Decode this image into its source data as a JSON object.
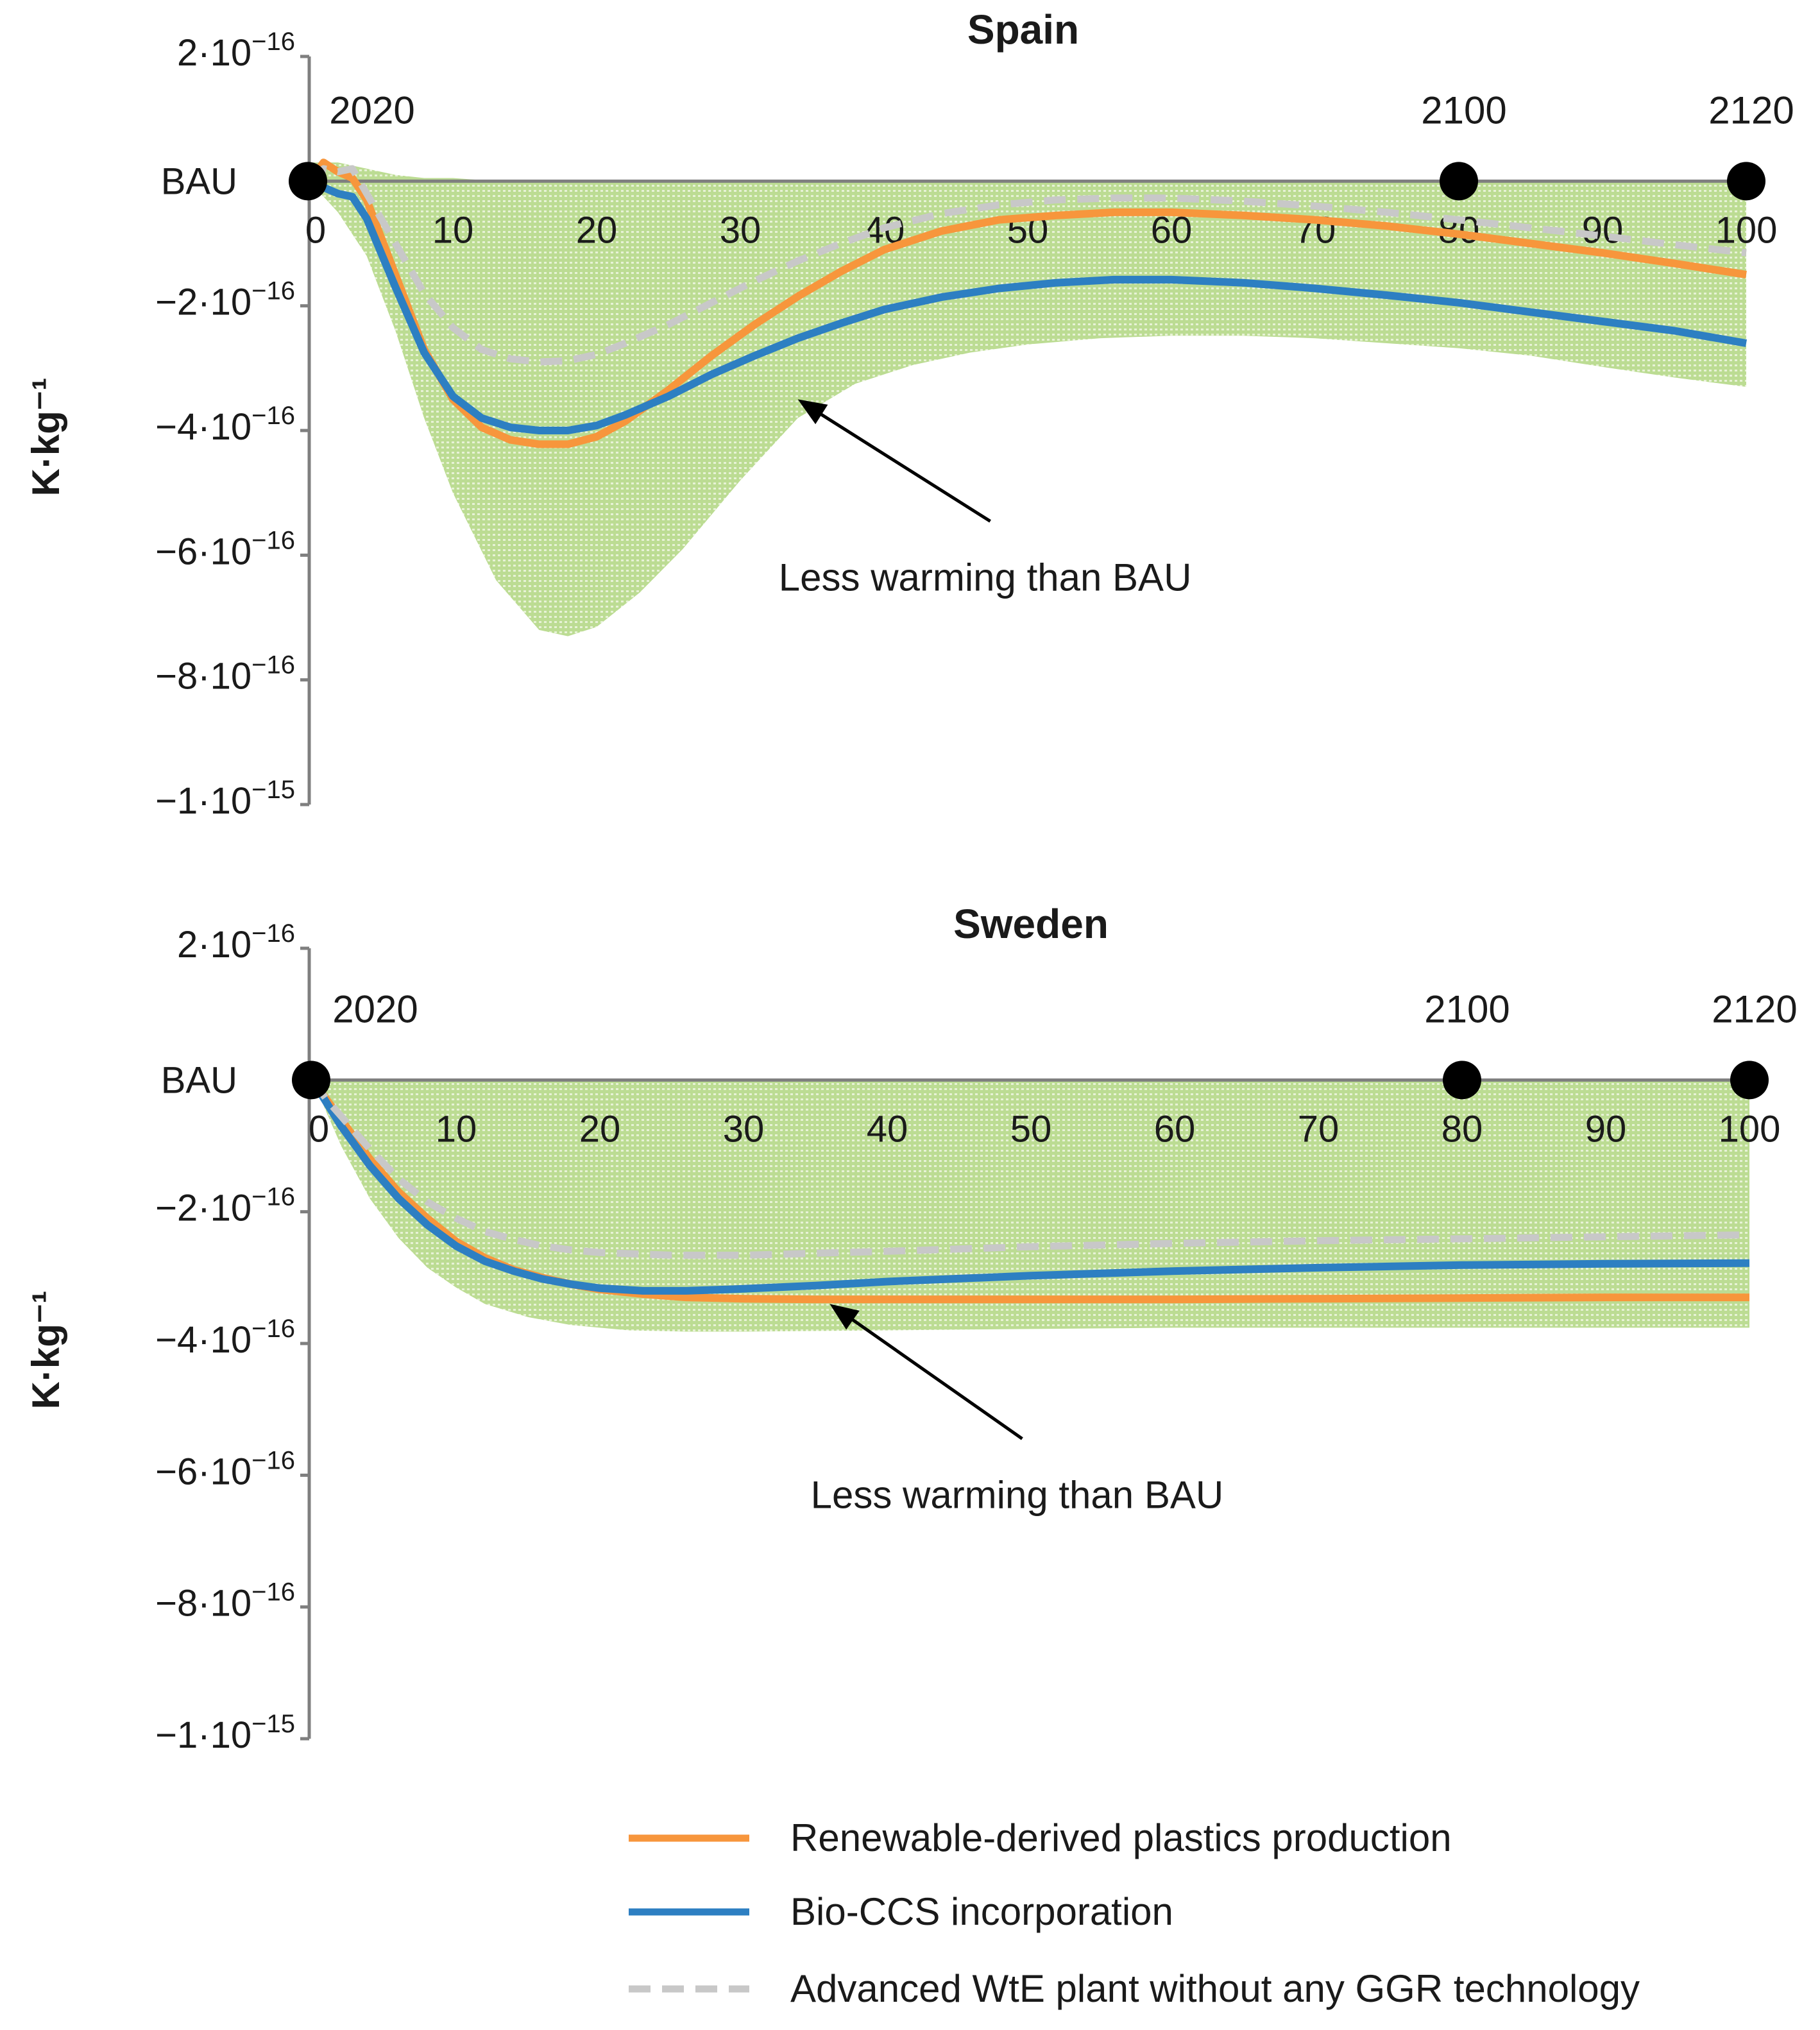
{
  "chart_data": [
    {
      "type": "line",
      "title": "Spain",
      "ylabel": "K·kg⁻¹",
      "xlabel": "",
      "xlim": [
        0,
        100
      ],
      "ylim": [
        -1e-15,
        2e-16
      ],
      "x_ticks": [
        "0",
        "10",
        "20",
        "30",
        "40",
        "50",
        "60",
        "70",
        "80",
        "90",
        "100"
      ],
      "y_ticks": [
        {
          "value": 2e-16,
          "mant": "2",
          "exp": "−16"
        },
        {
          "value": -2e-16,
          "mant": "−2",
          "exp": "−16"
        },
        {
          "value": -4e-16,
          "mant": "−4",
          "exp": "−16"
        },
        {
          "value": -6e-16,
          "mant": "−6",
          "exp": "−16"
        },
        {
          "value": -8e-16,
          "mant": "−8",
          "exp": "−16"
        },
        {
          "value": -1e-15,
          "mant": "−1",
          "exp": "−15"
        }
      ],
      "baseline_label": "BAU",
      "year_markers": [
        {
          "x": 0,
          "label": "2020"
        },
        {
          "x": 80,
          "label": "2100"
        },
        {
          "x": 100,
          "label": "2120"
        }
      ],
      "annotation": {
        "text": "Less warming than BAU",
        "x": 34,
        "y": -3.5e-16
      },
      "band": {
        "x": [
          0,
          2,
          4,
          6,
          8,
          10,
          13,
          16,
          18,
          20,
          23,
          26,
          30,
          34,
          38,
          42,
          46,
          50,
          55,
          60,
          65,
          70,
          75,
          80,
          85,
          90,
          95,
          100
        ],
        "upper": [
          3e-17,
          3e-17,
          2e-17,
          1e-17,
          5e-18,
          5e-18,
          0,
          0,
          0,
          0,
          0,
          0,
          0,
          0,
          0,
          0,
          0,
          0,
          0,
          0,
          0,
          0,
          0,
          0,
          0,
          0,
          0,
          0
        ],
        "lower": [
          0,
          -5e-17,
          -1.2e-16,
          -2.4e-16,
          -3.8e-16,
          -5e-16,
          -6.4e-16,
          -7.2e-16,
          -7.3e-16,
          -7.15e-16,
          -6.6e-16,
          -5.9e-16,
          -4.8e-16,
          -3.8e-16,
          -3.25e-16,
          -2.95e-16,
          -2.75e-16,
          -2.62e-16,
          -2.52e-16,
          -2.48e-16,
          -2.48e-16,
          -2.52e-16,
          -2.6e-16,
          -2.68e-16,
          -2.8e-16,
          -2.98e-16,
          -3.15e-16,
          -3.3e-16
        ]
      },
      "series": [
        {
          "name": "Renewable-derived plastics production",
          "color": "#f7963c",
          "dashed": false,
          "x": [
            0,
            1,
            2,
            3,
            4,
            6,
            8,
            10,
            12,
            14,
            16,
            18,
            20,
            22,
            25,
            28,
            31,
            34,
            37,
            40,
            44,
            48,
            52,
            56,
            60,
            65,
            70,
            75,
            80,
            85,
            90,
            95,
            100
          ],
          "values": [
            0,
            3e-17,
            1.5e-17,
            5e-18,
            -3e-17,
            -1.5e-16,
            -2.7e-16,
            -3.5e-16,
            -3.95e-16,
            -4.15e-16,
            -4.22e-16,
            -4.22e-16,
            -4.1e-16,
            -3.85e-16,
            -3.35e-16,
            -2.8e-16,
            -2.3e-16,
            -1.85e-16,
            -1.45e-16,
            -1.1e-16,
            -8e-17,
            -6.2e-17,
            -5.5e-17,
            -5e-17,
            -5e-17,
            -5.5e-17,
            -6.2e-17,
            -7.2e-17,
            -8.5e-17,
            -1e-16,
            -1.15e-16,
            -1.32e-16,
            -1.5e-16
          ]
        },
        {
          "name": "Bio-CCS incorporation",
          "color": "#2d7fc2",
          "dashed": false,
          "x": [
            0,
            1,
            2,
            3,
            4,
            6,
            8,
            10,
            12,
            14,
            16,
            18,
            20,
            22,
            25,
            28,
            31,
            34,
            37,
            40,
            44,
            48,
            52,
            56,
            60,
            65,
            70,
            75,
            80,
            85,
            90,
            95,
            100
          ],
          "values": [
            0,
            -1e-17,
            -2e-17,
            -2.5e-17,
            -6e-17,
            -1.7e-16,
            -2.75e-16,
            -3.45e-16,
            -3.8e-16,
            -3.95e-16,
            -4e-16,
            -4e-16,
            -3.92e-16,
            -3.75e-16,
            -3.45e-16,
            -3.1e-16,
            -2.8e-16,
            -2.52e-16,
            -2.28e-16,
            -2.06e-16,
            -1.86e-16,
            -1.72e-16,
            -1.63e-16,
            -1.58e-16,
            -1.58e-16,
            -1.63e-16,
            -1.72e-16,
            -1.83e-16,
            -1.95e-16,
            -2.1e-16,
            -2.25e-16,
            -2.4e-16,
            -2.6e-16
          ]
        },
        {
          "name": "Advanced WtE plant without any GGR technology",
          "color": "#c8c8c8",
          "dashed": true,
          "x": [
            0,
            1,
            2,
            3,
            4,
            6,
            8,
            10,
            12,
            14,
            16,
            18,
            20,
            22,
            25,
            28,
            31,
            34,
            37,
            40,
            44,
            48,
            52,
            56,
            60,
            65,
            70,
            75,
            80,
            85,
            90,
            95,
            100
          ],
          "values": [
            0,
            2e-17,
            1.5e-17,
            2e-17,
            -2e-17,
            -1e-16,
            -1.8e-16,
            -2.35e-16,
            -2.7e-16,
            -2.85e-16,
            -2.9e-16,
            -2.88e-16,
            -2.78e-16,
            -2.6e-16,
            -2.3e-16,
            -1.95e-16,
            -1.6e-16,
            -1.28e-16,
            -1e-16,
            -7.5e-17,
            -5.2e-17,
            -3.8e-17,
            -3e-17,
            -2.7e-17,
            -2.7e-17,
            -3.2e-17,
            -4e-17,
            -5e-17,
            -6.2e-17,
            -7.5e-17,
            -8.8e-17,
            -1.02e-16,
            -1.15e-16
          ]
        }
      ]
    },
    {
      "type": "line",
      "title": "Sweden",
      "ylabel": "K·kg⁻¹",
      "xlabel": "",
      "xlim": [
        0,
        100
      ],
      "ylim": [
        -1e-15,
        2e-16
      ],
      "x_ticks": [
        "0",
        "10",
        "20",
        "30",
        "40",
        "50",
        "60",
        "70",
        "80",
        "90",
        "100"
      ],
      "y_ticks": [
        {
          "value": 2e-16,
          "mant": "2",
          "exp": "−16"
        },
        {
          "value": -2e-16,
          "mant": "−2",
          "exp": "−16"
        },
        {
          "value": -4e-16,
          "mant": "−4",
          "exp": "−16"
        },
        {
          "value": -6e-16,
          "mant": "−6",
          "exp": "−16"
        },
        {
          "value": -8e-16,
          "mant": "−8",
          "exp": "−16"
        },
        {
          "value": -1e-15,
          "mant": "−1",
          "exp": "−15"
        }
      ],
      "baseline_label": "BAU",
      "year_markers": [
        {
          "x": 0,
          "label": "2020"
        },
        {
          "x": 80,
          "label": "2100"
        },
        {
          "x": 100,
          "label": "2120"
        }
      ],
      "annotation": {
        "text": "Less warming than BAU",
        "x": 36,
        "y": -3.4e-16
      },
      "band": {
        "x": [
          0,
          2,
          4,
          6,
          8,
          10,
          12,
          15,
          18,
          22,
          26,
          30,
          40,
          50,
          60,
          70,
          80,
          90,
          100
        ],
        "upper": [
          0,
          0,
          0,
          0,
          0,
          0,
          0,
          0,
          0,
          0,
          0,
          0,
          0,
          0,
          0,
          0,
          0,
          0,
          0
        ],
        "lower": [
          0,
          -1e-16,
          -1.8e-16,
          -2.4e-16,
          -2.85e-16,
          -3.15e-16,
          -3.4e-16,
          -3.6e-16,
          -3.72e-16,
          -3.8e-16,
          -3.82e-16,
          -3.82e-16,
          -3.8e-16,
          -3.78e-16,
          -3.76e-16,
          -3.76e-16,
          -3.76e-16,
          -3.76e-16,
          -3.76e-16
        ]
      },
      "series": [
        {
          "name": "Renewable-derived plastics production",
          "color": "#f7963c",
          "dashed": false,
          "x": [
            0,
            1,
            2,
            3,
            4,
            6,
            8,
            10,
            12,
            14,
            16,
            18,
            20,
            23,
            26,
            30,
            35,
            40,
            50,
            60,
            70,
            80,
            90,
            100
          ],
          "values": [
            0,
            -3e-17,
            -6e-17,
            -9e-17,
            -1.2e-16,
            -1.7e-16,
            -2.1e-16,
            -2.45e-16,
            -2.7e-16,
            -2.88e-16,
            -3e-16,
            -3.1e-16,
            -3.18e-16,
            -3.25e-16,
            -3.3e-16,
            -3.32e-16,
            -3.33e-16,
            -3.33e-16,
            -3.33e-16,
            -3.33e-16,
            -3.32e-16,
            -3.31e-16,
            -3.3e-16,
            -3.3e-16
          ]
        },
        {
          "name": "Bio-CCS incorporation",
          "color": "#2d7fc2",
          "dashed": false,
          "x": [
            0,
            1,
            2,
            3,
            4,
            6,
            8,
            10,
            12,
            14,
            16,
            18,
            20,
            23,
            26,
            30,
            35,
            40,
            50,
            60,
            70,
            80,
            90,
            100
          ],
          "values": [
            0,
            -3.5e-17,
            -7e-17,
            -1e-16,
            -1.3e-16,
            -1.8e-16,
            -2.2e-16,
            -2.52e-16,
            -2.75e-16,
            -2.9e-16,
            -3.02e-16,
            -3.1e-16,
            -3.16e-16,
            -3.2e-16,
            -3.2e-16,
            -3.17e-16,
            -3.12e-16,
            -3.06e-16,
            -2.97e-16,
            -2.9e-16,
            -2.85e-16,
            -2.81e-16,
            -2.79e-16,
            -2.78e-16
          ]
        },
        {
          "name": "Advanced WtE plant without any GGR technology",
          "color": "#c8c8c8",
          "dashed": true,
          "x": [
            0,
            1,
            2,
            3,
            4,
            6,
            8,
            10,
            12,
            14,
            16,
            18,
            20,
            25,
            30,
            40,
            50,
            60,
            70,
            80,
            90,
            100
          ],
          "values": [
            0,
            -3e-17,
            -5.5e-17,
            -8e-17,
            -1.05e-16,
            -1.5e-16,
            -1.85e-16,
            -2.1e-16,
            -2.3e-16,
            -2.42e-16,
            -2.52e-16,
            -2.58e-16,
            -2.62e-16,
            -2.66e-16,
            -2.66e-16,
            -2.6e-16,
            -2.53e-16,
            -2.48e-16,
            -2.44e-16,
            -2.41e-16,
            -2.38e-16,
            -2.35e-16
          ]
        }
      ]
    }
  ],
  "legend": [
    {
      "label": "Renewable-derived plastics production",
      "color": "#f7963c",
      "dashed": false
    },
    {
      "label": "Bio-CCS incorporation",
      "color": "#2d7fc2",
      "dashed": false
    },
    {
      "label": "Advanced WtE plant without any GGR technology",
      "color": "#c8c8c8",
      "dashed": true
    }
  ],
  "colors": {
    "axis": "#7f7f7f",
    "band": "#b7d98a",
    "marker": "#000000",
    "text": "#1a1a1a"
  }
}
